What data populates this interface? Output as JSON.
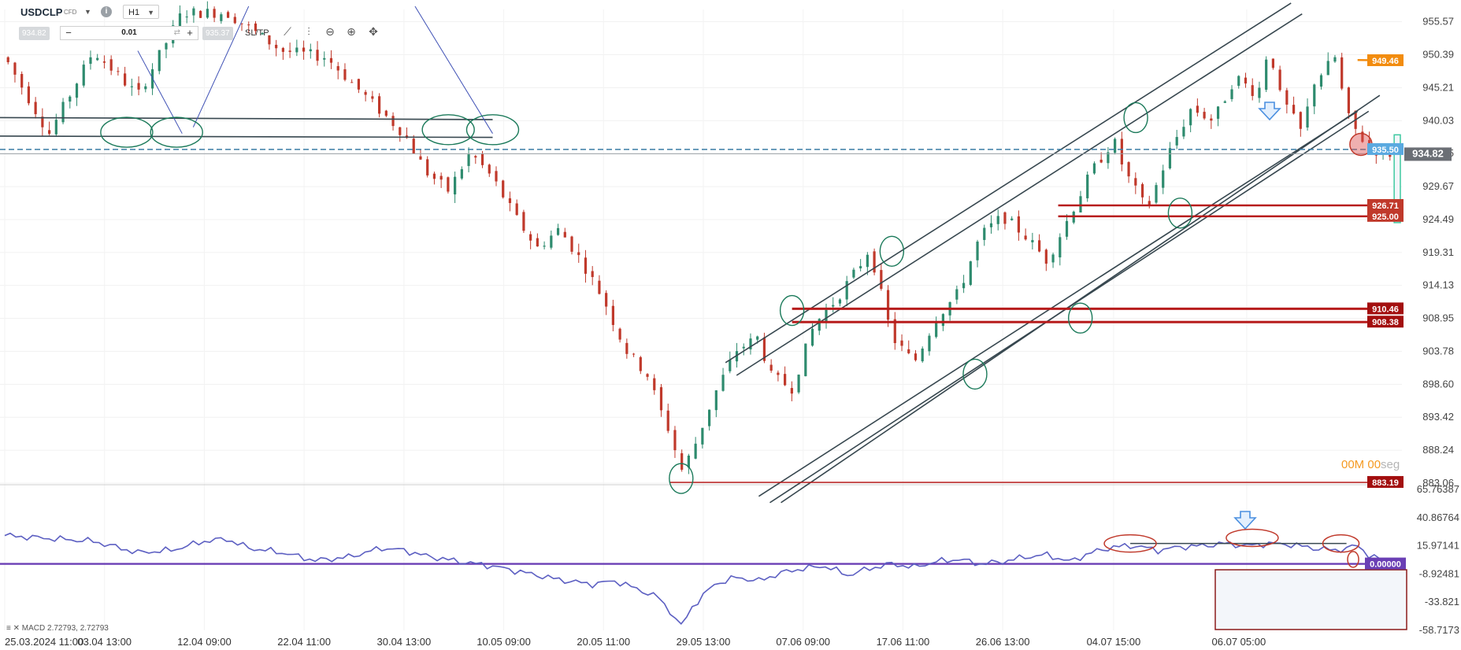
{
  "header": {
    "symbol": "USDCLP",
    "instrument_type": "CFD",
    "timeframe": "H1",
    "bid": "934.82",
    "ask": "935.37",
    "quantity": "0.01",
    "qty_minus": "−",
    "qty_plus": "+",
    "sltp_label": "SL/TP",
    "info_glyph": "i"
  },
  "timer": {
    "value": "00M 00",
    "unit": "seg"
  },
  "macd_label": "MACD 2.72793, 2.72793",
  "colors": {
    "bull": "#2e8b6e",
    "bear": "#c0392b",
    "channel": "#37474f",
    "level": "#b71c1c",
    "macd": "#5c5fc2",
    "zero": "#6a3fb5",
    "orange": "#f28c0f",
    "circle": "#1b7a5a",
    "dashed": "#3a7ca5"
  },
  "chart_data": [
    {
      "type": "line",
      "title": "USDCLP",
      "x_ticks": [
        "25.03.2024 11:00",
        "03.04 13:00",
        "12.04 09:00",
        "22.04 11:00",
        "30.04 13:00",
        "10.05 09:00",
        "20.05 11:00",
        "29.05 13:00",
        "07.06 09:00",
        "17.06 11:00",
        "26.06 13:00",
        "04.07 15:00",
        "06.07 05:00"
      ],
      "y_ticks": [
        955.57,
        950.39,
        945.21,
        940.03,
        934.85,
        929.67,
        924.49,
        919.31,
        914.13,
        908.95,
        903.78,
        898.6,
        893.42,
        888.24,
        883.06
      ],
      "ylim": [
        883.06,
        957.5
      ],
      "current_price": 934.82,
      "level_labels": [
        {
          "value": 949.46,
          "color": "#f28c0f"
        },
        {
          "value": 935.5,
          "color": "#5aa9e0"
        },
        {
          "value": 934.82,
          "color": "#6b6f75"
        },
        {
          "value": 926.71,
          "color": "#c0392b"
        },
        {
          "value": 925.0,
          "color": "#c0392b"
        },
        {
          "value": 910.46,
          "color": "#a30f0f"
        },
        {
          "value": 908.38,
          "color": "#a30f0f"
        },
        {
          "value": 883.19,
          "color": "#a30f0f"
        }
      ],
      "path": [
        [
          0,
          950
        ],
        [
          4,
          938
        ],
        [
          8,
          951
        ],
        [
          12,
          944
        ],
        [
          16,
          957
        ],
        [
          20,
          957
        ],
        [
          25,
          951
        ],
        [
          29,
          950
        ],
        [
          33,
          943
        ],
        [
          36,
          938
        ],
        [
          38,
          932
        ],
        [
          40,
          929
        ],
        [
          42,
          935
        ],
        [
          44,
          931
        ],
        [
          46,
          925
        ],
        [
          48,
          920
        ],
        [
          50,
          923
        ],
        [
          52,
          918
        ],
        [
          54,
          912
        ],
        [
          56,
          904
        ],
        [
          58,
          900
        ],
        [
          59,
          895
        ],
        [
          60,
          891
        ],
        [
          61,
          885
        ],
        [
          62,
          888
        ],
        [
          64,
          897
        ],
        [
          66,
          904
        ],
        [
          68,
          906
        ],
        [
          69,
          900
        ],
        [
          71,
          898
        ],
        [
          73,
          908
        ],
        [
          75,
          912
        ],
        [
          77,
          917
        ],
        [
          78,
          920
        ],
        [
          80,
          906
        ],
        [
          82,
          902
        ],
        [
          84,
          909
        ],
        [
          86,
          913
        ],
        [
          88,
          922
        ],
        [
          90,
          925
        ],
        [
          92,
          922
        ],
        [
          94,
          918
        ],
        [
          96,
          925
        ],
        [
          98,
          932
        ],
        [
          100,
          937
        ],
        [
          101,
          932
        ],
        [
          103,
          926
        ],
        [
          105,
          935
        ],
        [
          107,
          942
        ],
        [
          109,
          940
        ],
        [
          111,
          947
        ],
        [
          113,
          944
        ],
        [
          114,
          952
        ],
        [
          115,
          944
        ],
        [
          117,
          938
        ],
        [
          118,
          946
        ],
        [
          119,
          948
        ],
        [
          120,
          950
        ],
        [
          121,
          941
        ],
        [
          122,
          938
        ],
        [
          123,
          936
        ],
        [
          124,
          935
        ],
        [
          125,
          934.82
        ]
      ]
    },
    {
      "type": "line",
      "title": "MACD",
      "y_ticks": [
        65.76387,
        40.86764,
        15.97141,
        -8.92481,
        -33.821,
        -58.7173
      ],
      "ylim": [
        -58.7173,
        65.76387
      ],
      "zero_label": 0.0,
      "path": [
        [
          0,
          25
        ],
        [
          8,
          20
        ],
        [
          12,
          10
        ],
        [
          15,
          12
        ],
        [
          18,
          20
        ],
        [
          20,
          22
        ],
        [
          22,
          14
        ],
        [
          25,
          10
        ],
        [
          28,
          3
        ],
        [
          31,
          6
        ],
        [
          34,
          14
        ],
        [
          36,
          12
        ],
        [
          38,
          7
        ],
        [
          41,
          2
        ],
        [
          44,
          -2
        ],
        [
          47,
          -8
        ],
        [
          50,
          -14
        ],
        [
          53,
          -18
        ],
        [
          55,
          -15
        ],
        [
          57,
          -22
        ],
        [
          59,
          -30
        ],
        [
          60,
          -42
        ],
        [
          61,
          -55
        ],
        [
          62,
          -38
        ],
        [
          64,
          -18
        ],
        [
          66,
          -12
        ],
        [
          68,
          -15
        ],
        [
          70,
          -8
        ],
        [
          72,
          -4
        ],
        [
          74,
          -2
        ],
        [
          76,
          -10
        ],
        [
          78,
          -4
        ],
        [
          80,
          0
        ],
        [
          82,
          -3
        ],
        [
          84,
          2
        ],
        [
          86,
          4
        ],
        [
          88,
          0
        ],
        [
          90,
          2
        ],
        [
          92,
          6
        ],
        [
          94,
          8
        ],
        [
          96,
          2
        ],
        [
          98,
          10
        ],
        [
          100,
          15
        ],
        [
          102,
          16
        ],
        [
          104,
          12
        ],
        [
          106,
          15
        ],
        [
          108,
          16
        ],
        [
          110,
          18
        ],
        [
          112,
          16
        ],
        [
          114,
          18
        ],
        [
          116,
          17
        ],
        [
          118,
          14
        ],
        [
          120,
          12
        ],
        [
          122,
          16
        ],
        [
          123,
          8
        ],
        [
          124,
          4
        ],
        [
          125,
          3
        ]
      ]
    }
  ]
}
